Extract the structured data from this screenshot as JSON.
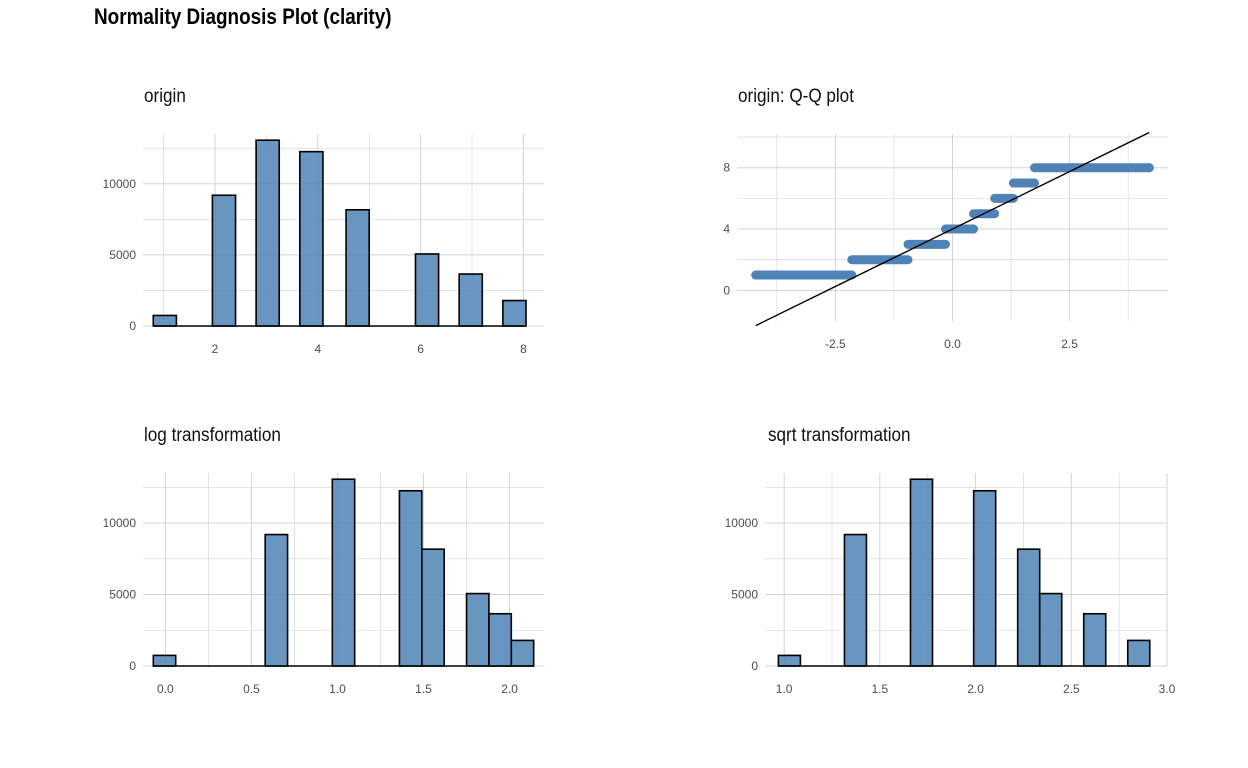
{
  "title": "Normality Diagnosis Plot (clarity)",
  "colors": {
    "fill": "#4F83B6",
    "outline": "#000000",
    "grid": "#D3D3D3",
    "tick_text": "#4D4D4D"
  },
  "chart_data": [
    {
      "type": "bar",
      "title": "origin",
      "xticks": [
        "2",
        "4",
        "6",
        "8"
      ],
      "yticks": [
        "0",
        "5000",
        "10000"
      ],
      "xlim": [
        0.6,
        8.4
      ],
      "ylim": [
        0,
        13500
      ],
      "bins": [
        {
          "x0": 0.8,
          "x1": 1.25,
          "value": 741
        },
        {
          "x0": 1.95,
          "x1": 2.4,
          "value": 9194
        },
        {
          "x0": 2.8,
          "x1": 3.25,
          "value": 13065
        },
        {
          "x0": 3.65,
          "x1": 4.1,
          "value": 12258
        },
        {
          "x0": 4.55,
          "x1": 5.0,
          "value": 8171
        },
        {
          "x0": 5.9,
          "x1": 6.35,
          "value": 5066
        },
        {
          "x0": 6.75,
          "x1": 7.2,
          "value": 3655
        },
        {
          "x0": 7.6,
          "x1": 8.05,
          "value": 1790
        }
      ]
    },
    {
      "type": "scatter",
      "title": "origin: Q-Q plot",
      "xticks": [
        "-2.5",
        "0.0",
        "2.5"
      ],
      "yticks": [
        "0",
        "4",
        "8"
      ],
      "xlim": [
        -4.6,
        4.6
      ],
      "ylim": [
        -2.0,
        10.2
      ],
      "qq_line": {
        "x": [
          -4.2,
          4.2
        ],
        "y": [
          -2.3,
          10.3
        ]
      },
      "segments": [
        {
          "x0": -4.2,
          "x1": -2.15,
          "y": 1
        },
        {
          "x0": -2.15,
          "x1": -0.95,
          "y": 2
        },
        {
          "x0": -0.95,
          "x1": -0.15,
          "y": 3
        },
        {
          "x0": -0.15,
          "x1": 0.45,
          "y": 4
        },
        {
          "x0": 0.45,
          "x1": 0.9,
          "y": 5
        },
        {
          "x0": 0.9,
          "x1": 1.3,
          "y": 6
        },
        {
          "x0": 1.3,
          "x1": 1.75,
          "y": 7
        },
        {
          "x0": 1.75,
          "x1": 4.2,
          "y": 8
        }
      ]
    },
    {
      "type": "bar",
      "title": "log transformation",
      "xticks": [
        "0.0",
        "0.5",
        "1.0",
        "1.5",
        "2.0"
      ],
      "yticks": [
        "0",
        "5000",
        "10000"
      ],
      "xlim": [
        -0.13,
        2.2
      ],
      "ylim": [
        0,
        13500
      ],
      "bins": [
        {
          "x0": -0.07,
          "x1": 0.06,
          "value": 741
        },
        {
          "x0": 0.58,
          "x1": 0.71,
          "value": 9194
        },
        {
          "x0": 0.97,
          "x1": 1.1,
          "value": 13065
        },
        {
          "x0": 1.36,
          "x1": 1.49,
          "value": 12258
        },
        {
          "x0": 1.49,
          "x1": 1.62,
          "value": 8171
        },
        {
          "x0": 1.75,
          "x1": 1.88,
          "value": 5066
        },
        {
          "x0": 1.88,
          "x1": 2.01,
          "value": 3655
        },
        {
          "x0": 2.01,
          "x1": 2.14,
          "value": 1790
        }
      ]
    },
    {
      "type": "bar",
      "title": "sqrt transformation",
      "xticks": [
        "1.0",
        "1.5",
        "2.0",
        "2.5",
        "3.0"
      ],
      "yticks": [
        "0",
        "5000",
        "10000"
      ],
      "xlim": [
        0.9,
        3.0
      ],
      "ylim": [
        0,
        13500
      ],
      "bins": [
        {
          "x0": 0.97,
          "x1": 1.085,
          "value": 741
        },
        {
          "x0": 1.315,
          "x1": 1.43,
          "value": 9194
        },
        {
          "x0": 1.66,
          "x1": 1.775,
          "value": 13065
        },
        {
          "x0": 1.99,
          "x1": 2.105,
          "value": 12258
        },
        {
          "x0": 2.22,
          "x1": 2.335,
          "value": 8171
        },
        {
          "x0": 2.335,
          "x1": 2.45,
          "value": 5066
        },
        {
          "x0": 2.565,
          "x1": 2.68,
          "value": 3655
        },
        {
          "x0": 2.795,
          "x1": 2.91,
          "value": 1790
        }
      ]
    }
  ]
}
